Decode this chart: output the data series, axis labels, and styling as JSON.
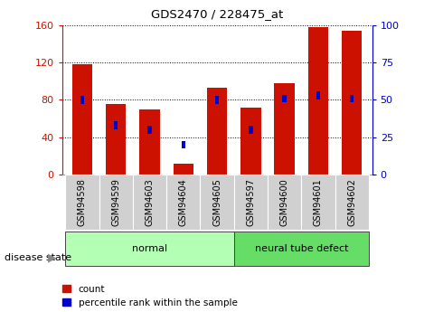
{
  "title": "GDS2470 / 228475_at",
  "samples": [
    "GSM94598",
    "GSM94599",
    "GSM94603",
    "GSM94604",
    "GSM94605",
    "GSM94597",
    "GSM94600",
    "GSM94601",
    "GSM94602"
  ],
  "count_values": [
    118,
    76,
    70,
    12,
    93,
    72,
    98,
    158,
    154
  ],
  "percentile_values": [
    50,
    33,
    30,
    20,
    50,
    30,
    51,
    53,
    51
  ],
  "groups": [
    {
      "label": "normal",
      "start": 0,
      "end": 5,
      "color": "#b3ffb3"
    },
    {
      "label": "neural tube defect",
      "start": 5,
      "end": 9,
      "color": "#66dd66"
    }
  ],
  "disease_state_label": "disease state",
  "left_ylim": [
    0,
    160
  ],
  "right_ylim": [
    0,
    100
  ],
  "left_yticks": [
    0,
    40,
    80,
    120,
    160
  ],
  "right_yticks": [
    0,
    25,
    50,
    75,
    100
  ],
  "bar_color_red": "#cc1100",
  "bar_color_blue": "#0000cc",
  "red_bar_width": 0.6,
  "blue_bar_width": 0.12,
  "legend_count_label": "count",
  "legend_pct_label": "percentile rank within the sample",
  "background_color": "#ffffff",
  "plot_bg_color": "#ffffff",
  "tick_label_area_color": "#d0d0d0",
  "group_border_color": "#444444",
  "blue_bar_height": 8
}
